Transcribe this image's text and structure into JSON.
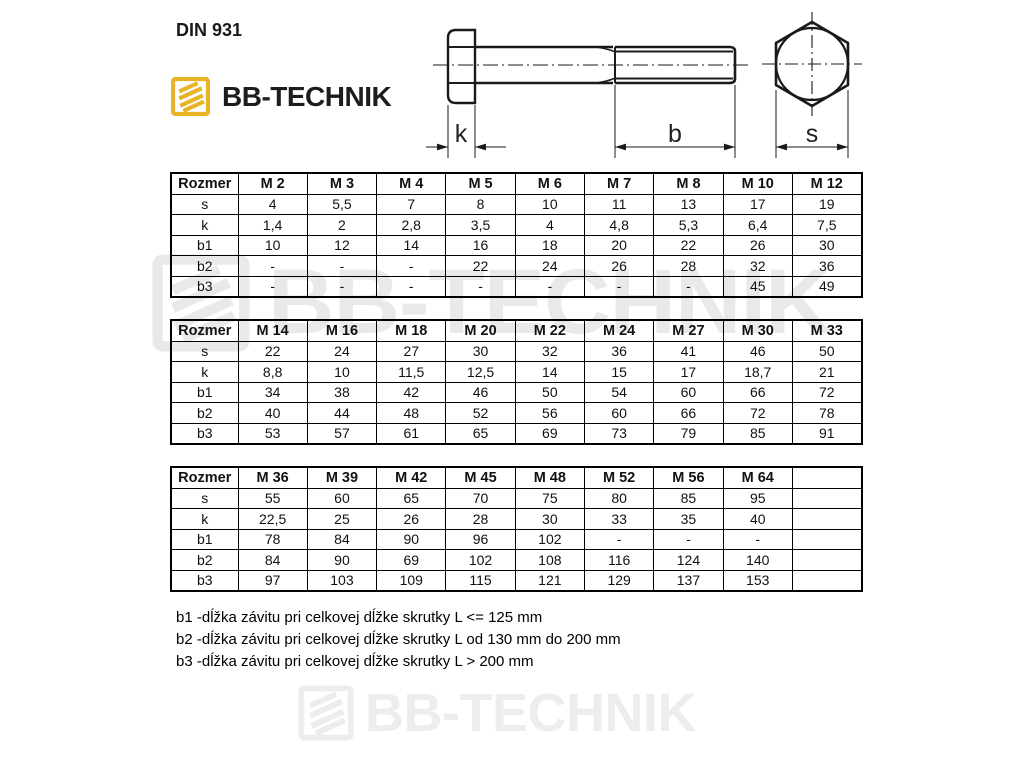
{
  "page": {
    "din_label": "DIN 931"
  },
  "logo": {
    "text": "BB-TECHNIK",
    "icon": "thread-square-icon",
    "yellow": "#E8B425",
    "dark": "#1D1D1B"
  },
  "drawing": {
    "description": "hex-bolt side view and end view",
    "labels": {
      "k": "k",
      "b": "b",
      "s": "s"
    }
  },
  "tables": [
    {
      "header": [
        "Rozmer",
        "M 2",
        "M 3",
        "M 4",
        "M 5",
        "M 6",
        "M 7",
        "M 8",
        "M 10",
        "M 12"
      ],
      "rows": [
        {
          "label": "s",
          "values": [
            "4",
            "5,5",
            "7",
            "8",
            "10",
            "11",
            "13",
            "17",
            "19"
          ]
        },
        {
          "label": "k",
          "values": [
            "1,4",
            "2",
            "2,8",
            "3,5",
            "4",
            "4,8",
            "5,3",
            "6,4",
            "7,5"
          ]
        },
        {
          "label": "b1",
          "values": [
            "10",
            "12",
            "14",
            "16",
            "18",
            "20",
            "22",
            "26",
            "30"
          ]
        },
        {
          "label": "b2",
          "values": [
            "-",
            "-",
            "-",
            "22",
            "24",
            "26",
            "28",
            "32",
            "36"
          ]
        },
        {
          "label": "b3",
          "values": [
            "-",
            "-",
            "-",
            "-",
            "-",
            "-",
            "-",
            "45",
            "49"
          ]
        }
      ]
    },
    {
      "header": [
        "Rozmer",
        "M 14",
        "M 16",
        "M 18",
        "M 20",
        "M 22",
        "M 24",
        "M 27",
        "M 30",
        "M 33"
      ],
      "rows": [
        {
          "label": "s",
          "values": [
            "22",
            "24",
            "27",
            "30",
            "32",
            "36",
            "41",
            "46",
            "50"
          ]
        },
        {
          "label": "k",
          "values": [
            "8,8",
            "10",
            "11,5",
            "12,5",
            "14",
            "15",
            "17",
            "18,7",
            "21"
          ]
        },
        {
          "label": "b1",
          "values": [
            "34",
            "38",
            "42",
            "46",
            "50",
            "54",
            "60",
            "66",
            "72"
          ]
        },
        {
          "label": "b2",
          "values": [
            "40",
            "44",
            "48",
            "52",
            "56",
            "60",
            "66",
            "72",
            "78"
          ]
        },
        {
          "label": "b3",
          "values": [
            "53",
            "57",
            "61",
            "65",
            "69",
            "73",
            "79",
            "85",
            "91"
          ]
        }
      ]
    },
    {
      "header": [
        "Rozmer",
        "M 36",
        "M 39",
        "M 42",
        "M 45",
        "M 48",
        "M 52",
        "M 56",
        "M 64",
        ""
      ],
      "rows": [
        {
          "label": "s",
          "values": [
            "55",
            "60",
            "65",
            "70",
            "75",
            "80",
            "85",
            "95",
            ""
          ]
        },
        {
          "label": "k",
          "values": [
            "22,5",
            "25",
            "26",
            "28",
            "30",
            "33",
            "35",
            "40",
            ""
          ]
        },
        {
          "label": "b1",
          "values": [
            "78",
            "84",
            "90",
            "96",
            "102",
            "-",
            "-",
            "-",
            ""
          ]
        },
        {
          "label": "b2",
          "values": [
            "84",
            "90",
            "69",
            "102",
            "108",
            "116",
            "124",
            "140",
            ""
          ]
        },
        {
          "label": "b3",
          "values": [
            "97",
            "103",
            "109",
            "115",
            "121",
            "129",
            "137",
            "153",
            ""
          ]
        }
      ]
    }
  ],
  "notes": [
    "b1 -dĺžka závitu pri celkovej dĺžke skrutky L <= 125 mm",
    "b2 -dĺžka závitu pri celkovej dĺžke skrutky L od 130 mm do 200 mm",
    "b3 -dĺžka závitu pri celkovej dĺžke skrutky L > 200 mm"
  ],
  "watermarks": {
    "text": "BB-TECHNIK",
    "middle_color": "#e9e9e9",
    "bottom_color": "#ededed"
  }
}
